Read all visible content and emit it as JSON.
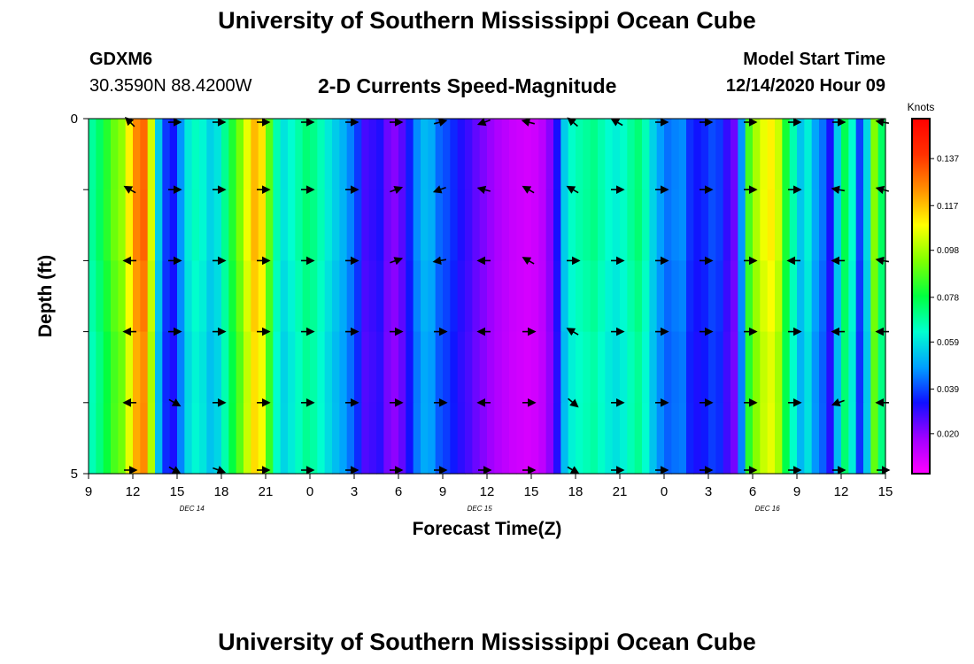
{
  "header": {
    "title": "University of Southern Mississippi Ocean Cube",
    "station_id": "GDXM6",
    "station_coords": "30.3590N 88.4200W",
    "plot_title": "2-D Currents Speed-Magnitude",
    "model_start_label": "Model Start Time",
    "model_start_value": "12/14/2020 Hour 09"
  },
  "footer": {
    "title": "University of Southern Mississippi Ocean Cube"
  },
  "chart_data": {
    "type": "heatmap",
    "title": "2-D Currents Speed-Magnitude",
    "xlabel": "Forecast Time(Z)",
    "ylabel": "Depth (ft)",
    "ylim": [
      0,
      5
    ],
    "y_ticks": [
      "0",
      "5"
    ],
    "x_ticks": [
      "9",
      "12",
      "15",
      "18",
      "21",
      "0",
      "3",
      "6",
      "9",
      "12",
      "15",
      "18",
      "21",
      "0",
      "3",
      "6",
      "9",
      "12",
      "15"
    ],
    "x_range_hours": [
      0,
      54
    ],
    "date_labels": [
      {
        "text": "DEC 14",
        "hour": 7
      },
      {
        "text": "DEC 15",
        "hour": 26.5
      },
      {
        "text": "DEC 16",
        "hour": 46
      }
    ],
    "colorbar": {
      "label": "Knots",
      "min": 0.003,
      "max": 0.154,
      "ticks": [
        0.137,
        0.117,
        0.098,
        0.078,
        0.059,
        0.039,
        0.02
      ],
      "colors": [
        "#ff00ff",
        "#a000ff",
        "#1010ff",
        "#00a0ff",
        "#00ffd0",
        "#00ff40",
        "#80ff00",
        "#ffff00",
        "#ff9000",
        "#ff3000",
        "#ff0000"
      ]
    },
    "speed_columns_knots": [
      0.07,
      0.076,
      0.084,
      0.092,
      0.097,
      0.112,
      0.127,
      0.132,
      0.105,
      0.056,
      0.038,
      0.034,
      0.048,
      0.061,
      0.066,
      0.063,
      0.057,
      0.06,
      0.071,
      0.083,
      0.094,
      0.108,
      0.12,
      0.114,
      0.09,
      0.068,
      0.06,
      0.064,
      0.069,
      0.074,
      0.072,
      0.067,
      0.061,
      0.056,
      0.052,
      0.046,
      0.038,
      0.028,
      0.03,
      0.032,
      0.024,
      0.021,
      0.026,
      0.035,
      0.047,
      0.053,
      0.051,
      0.043,
      0.04,
      0.036,
      0.032,
      0.029,
      0.025,
      0.022,
      0.019,
      0.016,
      0.014,
      0.012,
      0.011,
      0.01,
      0.011,
      0.014,
      0.021,
      0.033,
      0.056,
      0.065,
      0.068,
      0.07,
      0.072,
      0.068,
      0.064,
      0.062,
      0.065,
      0.07,
      0.074,
      0.067,
      0.057,
      0.049,
      0.044,
      0.046,
      0.047,
      0.037,
      0.034,
      0.036,
      0.04,
      0.038,
      0.03,
      0.024,
      0.048,
      0.088,
      0.1,
      0.108,
      0.112,
      0.104,
      0.082,
      0.068,
      0.055,
      0.062,
      0.05,
      0.044,
      0.033,
      0.056,
      0.078,
      0.064,
      0.039,
      0.058,
      0.095,
      0.076
    ],
    "depth_factors": [
      0.97,
      1.0,
      0.98,
      0.95,
      0.93,
      0.96
    ],
    "arrow_hours": [
      3,
      6,
      9,
      12,
      15,
      18,
      21,
      24,
      27,
      30,
      33,
      36,
      39,
      42,
      45,
      48,
      51,
      54
    ],
    "arrow_depths": [
      0,
      1,
      2,
      3,
      4,
      5
    ],
    "arrow_angles_deg": [
      [
        135,
        0,
        0,
        0,
        0,
        0,
        0,
        15,
        200,
        165,
        140,
        150,
        0,
        0,
        0,
        0,
        0,
        170
      ],
      [
        150,
        0,
        0,
        0,
        0,
        0,
        20,
        200,
        165,
        150,
        150,
        0,
        0,
        0,
        0,
        0,
        170,
        165
      ],
      [
        180,
        0,
        0,
        0,
        0,
        0,
        20,
        190,
        180,
        150,
        0,
        0,
        0,
        0,
        0,
        180,
        180,
        170
      ],
      [
        180,
        0,
        0,
        0,
        0,
        0,
        0,
        0,
        180,
        0,
        150,
        0,
        0,
        0,
        0,
        0,
        180,
        180
      ],
      [
        180,
        330,
        0,
        0,
        0,
        0,
        0,
        0,
        180,
        0,
        320,
        0,
        0,
        0,
        0,
        0,
        200,
        180
      ],
      [
        0,
        330,
        340,
        0,
        0,
        0,
        0,
        0,
        0,
        0,
        330,
        0,
        0,
        0,
        0,
        0,
        0,
        0
      ]
    ]
  }
}
